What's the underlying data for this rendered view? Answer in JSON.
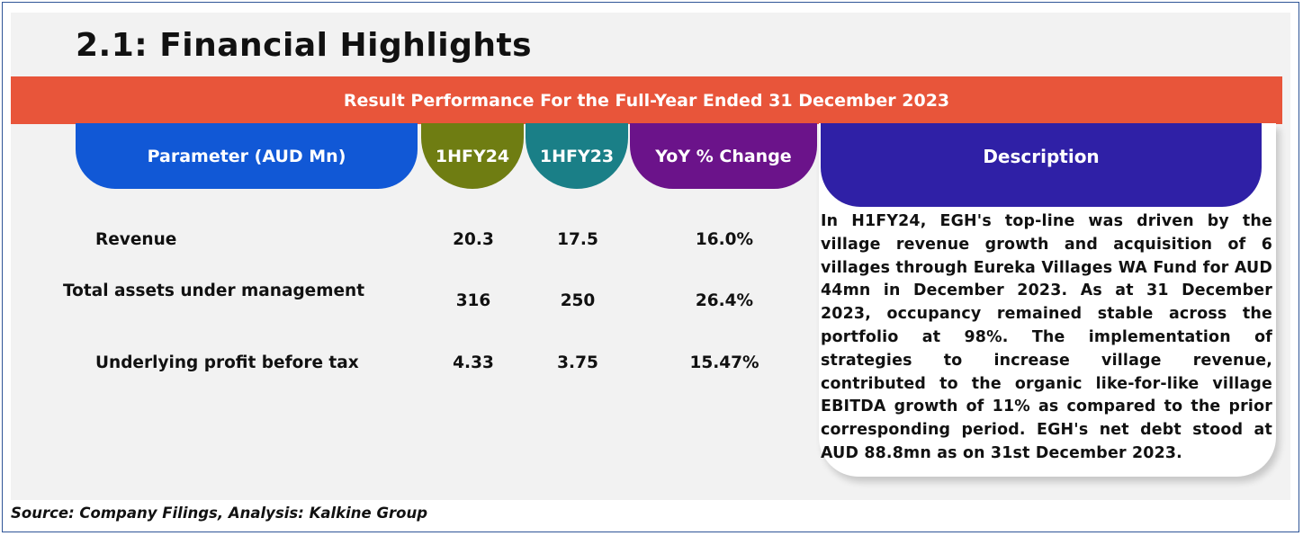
{
  "title": "2.1: Financial Highlights",
  "banner": "Result Performance For the Full-Year Ended 31 December 2023",
  "headers": {
    "parameter": "Parameter (AUD Mn)",
    "fy24": "1HFY24",
    "fy23": "1HFY23",
    "yoy": "YoY % Change",
    "description": "Description"
  },
  "rows": [
    {
      "parameter": "Revenue",
      "fy24": "20.3",
      "fy23": "17.5",
      "yoy": "16.0%"
    },
    {
      "parameter": "Total assets under management",
      "fy24": "316",
      "fy23": "250",
      "yoy": "26.4%"
    },
    {
      "parameter": "Underlying profit before tax",
      "fy24": "4.33",
      "fy23": "3.75",
      "yoy": "15.47%"
    }
  ],
  "description": "In H1FY24, EGH's top-line was driven by the village revenue growth and acquisition of 6 villages through Eureka Villages WA Fund for AUD 44mn in December 2023. As at 31 December 2023, occupancy remained stable across the portfolio at 98%. The implementation of strategies to increase village revenue, contributed to the organic like-for-like village EBITDA growth of 11% as compared to the prior corresponding period. EGH's net debt stood at AUD 88.8mn as on 31st December 2023.",
  "source": "Source: Company Filings, Analysis: Kalkine Group",
  "colors": {
    "banner": "#e8553a",
    "parameter_header": "#1158d6",
    "fy24_header": "#6f7d12",
    "fy23_header": "#1a7f87",
    "yoy_header": "#6b138a",
    "description_header": "#2f20a6"
  }
}
